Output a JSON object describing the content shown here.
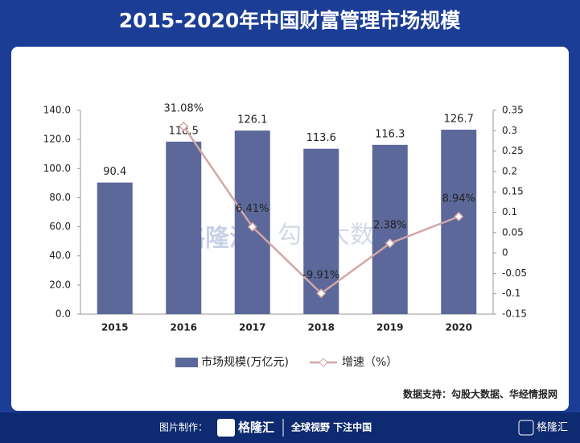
{
  "chart_data": {
    "type": "bar",
    "title": "2015-2020年中国财富管理市场规模",
    "categories": [
      "2015",
      "2016",
      "2017",
      "2018",
      "2019",
      "2020"
    ],
    "series": [
      {
        "name": "市场规模(万亿元)",
        "type": "bar",
        "color": "#5b6899",
        "values": [
          90.4,
          118.5,
          126.1,
          113.6,
          116.3,
          126.7
        ]
      },
      {
        "name": "增速（%）",
        "type": "line",
        "axis": "y2",
        "color": "#d3a6a6",
        "values": [
          null,
          0.3108,
          0.0641,
          -0.0991,
          0.0238,
          0.0894
        ],
        "value_labels": [
          null,
          "31.08%",
          "6.41%",
          "-9.91%",
          "2.38%",
          "8.94%"
        ]
      }
    ],
    "ylim": [
      0,
      140
    ],
    "yticks": [
      {
        "value": 0,
        "label": "0.0"
      },
      {
        "value": 20,
        "label": "20.0"
      },
      {
        "value": 40,
        "label": "40.0"
      },
      {
        "value": 60,
        "label": "60.0"
      },
      {
        "value": 80,
        "label": "80.0"
      },
      {
        "value": 100,
        "label": "100.0"
      },
      {
        "value": 120,
        "label": "120.0"
      },
      {
        "value": 140,
        "label": "140.0"
      }
    ],
    "y2lim": [
      -0.15,
      0.35
    ],
    "y2ticks": [
      -0.15,
      -0.1,
      -0.05,
      0,
      0.05,
      0.1,
      0.15,
      0.2,
      0.25,
      0.3,
      0.35
    ],
    "legend": "bottom",
    "source": "数据支持：勾股大数据、华经情报网"
  },
  "watermark": [
    "格隆汇",
    "勾股大数据"
  ],
  "footer": {
    "label": "图片制作：",
    "brand": "格隆汇",
    "slogan": "全球视野 下注中国",
    "corner_brand": "格隆汇"
  }
}
